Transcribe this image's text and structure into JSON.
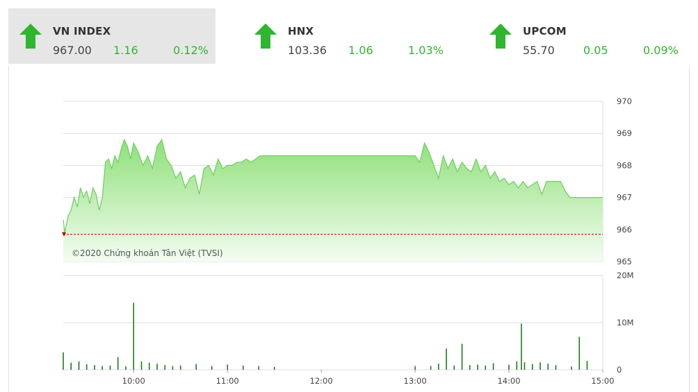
{
  "indices": [
    {
      "name": "VN INDEX",
      "value": "967.00",
      "change": "1.16",
      "percent": "0.12%",
      "direction": "up",
      "active": true
    },
    {
      "name": "HNX",
      "value": "103.36",
      "change": "1.06",
      "percent": "1.03%",
      "direction": "up",
      "active": false
    },
    {
      "name": "UPCOM",
      "value": "55.70",
      "change": "0.05",
      "percent": "0.09%",
      "direction": "up",
      "active": false
    }
  ],
  "colors": {
    "up": "#2fb52f",
    "area_top": "#8fe07a",
    "area_bottom": "#f4fcf2",
    "line": "#6ad05a",
    "reference": "#b00000",
    "volume": "#1d7a1d",
    "grid": "#dcdcdc"
  },
  "chart_data": [
    {
      "type": "area",
      "copyright": "©2020 Chứng khoán Tân Việt (TVSI)",
      "reference_value": 965.85,
      "ylim": [
        965,
        970
      ],
      "y_ticks": [
        "970",
        "969",
        "968",
        "967",
        "966",
        "965"
      ],
      "x_ticks": [
        "10:00",
        "11:00",
        "12:00",
        "13:00",
        "14:00",
        "15:00"
      ],
      "xlim": [
        "09:15",
        "15:00"
      ],
      "series": [
        {
          "x": [
            "09:15",
            "09:16",
            "09:18",
            "09:20",
            "09:22",
            "09:24",
            "09:26",
            "09:28",
            "09:30",
            "09:32",
            "09:34",
            "09:36",
            "09:38",
            "09:40",
            "09:42",
            "09:44",
            "09:46",
            "09:48",
            "09:50",
            "09:52",
            "09:54",
            "09:56",
            "09:58",
            "10:00",
            "10:03",
            "10:06",
            "10:09",
            "10:12",
            "10:15",
            "10:18",
            "10:21",
            "10:24",
            "10:27",
            "10:30",
            "10:33",
            "10:36",
            "10:39",
            "10:42",
            "10:45",
            "10:48",
            "10:51",
            "10:54",
            "10:57",
            "11:00",
            "11:03",
            "11:06",
            "11:09",
            "11:12",
            "11:15",
            "11:18",
            "11:21",
            "11:24",
            "11:27",
            "11:30",
            "13:00",
            "13:03",
            "13:06",
            "13:09",
            "13:12",
            "13:15",
            "13:18",
            "13:21",
            "13:24",
            "13:27",
            "13:30",
            "13:33",
            "13:36",
            "13:39",
            "13:42",
            "13:45",
            "13:48",
            "13:51",
            "13:54",
            "13:57",
            "14:00",
            "14:03",
            "14:06",
            "14:09",
            "14:12",
            "14:15",
            "14:18",
            "14:21",
            "14:24",
            "14:27",
            "14:30",
            "14:33",
            "14:36",
            "14:39",
            "14:42",
            "14:45"
          ],
          "y": [
            966.3,
            965.9,
            966.4,
            966.6,
            967.0,
            966.7,
            967.3,
            967.0,
            967.2,
            966.8,
            967.3,
            967.1,
            966.6,
            967.0,
            968.1,
            968.2,
            967.9,
            968.3,
            968.1,
            968.5,
            968.8,
            968.6,
            968.2,
            968.7,
            968.4,
            968.0,
            968.3,
            967.9,
            968.6,
            968.8,
            968.2,
            968.0,
            967.6,
            967.8,
            967.3,
            967.6,
            967.7,
            967.1,
            967.9,
            968.0,
            967.7,
            968.2,
            967.9,
            968.0,
            968.0,
            968.1,
            968.1,
            968.2,
            968.1,
            968.2,
            968.3,
            968.3,
            968.3,
            968.3,
            968.3,
            968.1,
            968.7,
            968.4,
            968.0,
            967.6,
            968.3,
            967.9,
            968.2,
            967.8,
            968.1,
            967.9,
            967.8,
            968.2,
            967.8,
            968.0,
            967.6,
            967.8,
            967.5,
            967.6,
            967.4,
            967.5,
            967.3,
            967.5,
            967.3,
            967.4,
            967.5,
            967.1,
            967.5,
            967.5,
            967.5,
            967.5,
            967.2,
            967.0,
            967.0,
            967.0
          ]
        }
      ]
    },
    {
      "type": "bar",
      "ylim": [
        0,
        20
      ],
      "unit": "M",
      "y_ticks": [
        "20M",
        "10M",
        "0"
      ],
      "x_ticks": [
        "10:00",
        "11:00",
        "12:00",
        "13:00",
        "14:00",
        "15:00"
      ],
      "series": [
        {
          "x": [
            "09:15",
            "09:20",
            "09:25",
            "09:30",
            "09:35",
            "09:40",
            "09:45",
            "09:50",
            "09:55",
            "10:00",
            "10:05",
            "10:10",
            "10:15",
            "10:20",
            "10:25",
            "10:30",
            "10:40",
            "10:50",
            "11:00",
            "11:10",
            "11:20",
            "11:30",
            "13:00",
            "13:10",
            "13:15",
            "13:20",
            "13:25",
            "13:30",
            "13:35",
            "13:40",
            "13:45",
            "13:50",
            "14:00",
            "14:05",
            "14:08",
            "14:10",
            "14:15",
            "14:20",
            "14:25",
            "14:30",
            "14:40",
            "14:45",
            "14:50"
          ],
          "y": [
            3.7,
            1.5,
            1.8,
            1.2,
            1.0,
            0.8,
            0.9,
            2.7,
            0.7,
            14.2,
            1.8,
            1.5,
            1.3,
            1.0,
            0.8,
            0.9,
            1.2,
            0.8,
            1.1,
            0.9,
            0.8,
            0.6,
            0.8,
            0.8,
            1.3,
            4.5,
            0.9,
            5.5,
            1.0,
            1.1,
            0.9,
            1.4,
            1.1,
            1.8,
            9.8,
            1.6,
            1.2,
            1.6,
            1.3,
            1.0,
            0.7,
            7.0,
            1.9
          ]
        }
      ]
    }
  ]
}
